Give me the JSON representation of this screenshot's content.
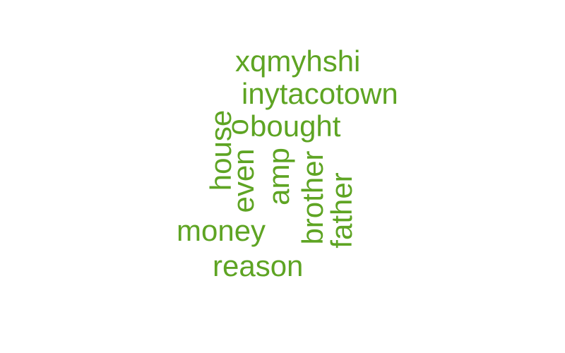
{
  "color": "#5ea423",
  "words": {
    "xqmyhshi": "xqmyhshi",
    "inytacotown": "inytacotown",
    "o": "o",
    "bought": "bought",
    "house": "house",
    "even": "even",
    "amp": "amp",
    "brother": "brother",
    "father": "father",
    "money": "money",
    "reason": "reason"
  }
}
